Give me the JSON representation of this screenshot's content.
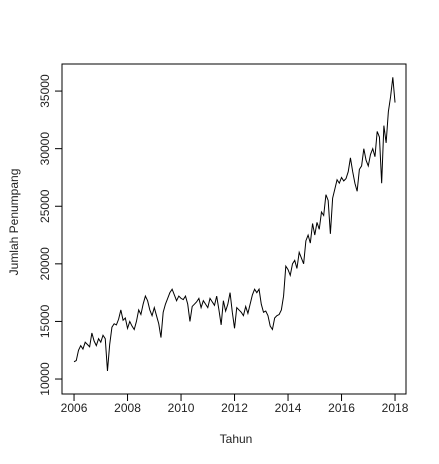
{
  "chart_data": {
    "type": "line",
    "xlabel": "Tahun",
    "ylabel": "Jumlah Penumpang",
    "color": "#000000",
    "xlim": [
      2005.55,
      2018.41
    ],
    "ylim": [
      8700,
      37350
    ],
    "xticks": [
      2006,
      2008,
      2010,
      2012,
      2014,
      2016,
      2018
    ],
    "yticks": [
      10000,
      15000,
      20000,
      25000,
      30000,
      35000
    ],
    "x": [
      2006,
      2006.083,
      2006.167,
      2006.25,
      2006.333,
      2006.417,
      2006.5,
      2006.583,
      2006.667,
      2006.75,
      2006.833,
      2006.917,
      2007,
      2007.083,
      2007.167,
      2007.25,
      2007.333,
      2007.417,
      2007.5,
      2007.583,
      2007.667,
      2007.75,
      2007.833,
      2007.917,
      2008,
      2008.083,
      2008.167,
      2008.25,
      2008.333,
      2008.417,
      2008.5,
      2008.583,
      2008.667,
      2008.75,
      2008.833,
      2008.917,
      2009,
      2009.083,
      2009.167,
      2009.25,
      2009.333,
      2009.417,
      2009.5,
      2009.583,
      2009.667,
      2009.75,
      2009.833,
      2009.917,
      2010,
      2010.083,
      2010.167,
      2010.25,
      2010.333,
      2010.417,
      2010.5,
      2010.583,
      2010.667,
      2010.75,
      2010.833,
      2010.917,
      2011,
      2011.083,
      2011.167,
      2011.25,
      2011.333,
      2011.417,
      2011.5,
      2011.583,
      2011.667,
      2011.75,
      2011.833,
      2011.917,
      2012,
      2012.083,
      2012.167,
      2012.25,
      2012.333,
      2012.417,
      2012.5,
      2012.583,
      2012.667,
      2012.75,
      2012.833,
      2012.917,
      2013,
      2013.083,
      2013.167,
      2013.25,
      2013.333,
      2013.417,
      2013.5,
      2013.583,
      2013.667,
      2013.75,
      2013.833,
      2013.917,
      2014,
      2014.083,
      2014.167,
      2014.25,
      2014.333,
      2014.417,
      2014.5,
      2014.583,
      2014.667,
      2014.75,
      2014.833,
      2014.917,
      2015,
      2015.083,
      2015.167,
      2015.25,
      2015.333,
      2015.417,
      2015.5,
      2015.583,
      2015.667,
      2015.75,
      2015.833,
      2015.917,
      2016,
      2016.083,
      2016.167,
      2016.25,
      2016.333,
      2016.417,
      2016.5,
      2016.583,
      2016.667,
      2016.75,
      2016.833,
      2016.917,
      2017,
      2017.083,
      2017.167,
      2017.25,
      2017.333,
      2017.417,
      2017.5,
      2017.583,
      2017.667,
      2017.75,
      2017.833,
      2017.917,
      2018
    ],
    "values": [
      11500,
      11600,
      12500,
      12900,
      12600,
      13200,
      13000,
      12800,
      14000,
      13300,
      12900,
      13500,
      13200,
      13800,
      13500,
      10700,
      13000,
      14500,
      14800,
      14700,
      15200,
      16000,
      15100,
      15300,
      14400,
      15000,
      14600,
      14300,
      15000,
      16000,
      15600,
      16500,
      17200,
      16800,
      16000,
      15500,
      16200,
      15500,
      14800,
      13600,
      15800,
      16500,
      17000,
      17500,
      17800,
      17300,
      16800,
      17200,
      17000,
      16900,
      17200,
      16500,
      15000,
      16300,
      16500,
      16700,
      17000,
      16200,
      16800,
      16500,
      16200,
      17000,
      16700,
      16400,
      17200,
      16000,
      14700,
      16800,
      15900,
      16500,
      17500,
      15800,
      14400,
      16200,
      16000,
      15800,
      15500,
      16300,
      15700,
      16500,
      17300,
      17800,
      17500,
      17800,
      16500,
      15800,
      15900,
      15500,
      14600,
      14300,
      15300,
      15500,
      15600,
      16000,
      17200,
      19800,
      19500,
      19000,
      20000,
      20300,
      19600,
      21000,
      20500,
      20000,
      22000,
      22500,
      21800,
      23500,
      22500,
      23600,
      23000,
      24500,
      24200,
      26000,
      25500,
      22600,
      25700,
      26500,
      27300,
      27000,
      27500,
      27200,
      27400,
      28000,
      29200,
      28000,
      27000,
      26300,
      28200,
      28500,
      30000,
      29000,
      28500,
      29500,
      30000,
      29300,
      31500,
      31000,
      27000,
      32000,
      30500,
      33200,
      34500,
      36200,
      34000
    ]
  }
}
